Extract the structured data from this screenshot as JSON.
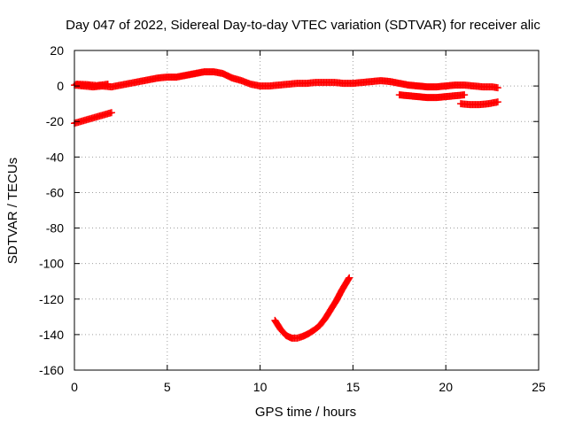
{
  "chart_data": {
    "type": "scatter",
    "title": "Day 047 of 2022, Sidereal Day-to-day VTEC variation (SDTVAR) for receiver alic",
    "xlabel": "GPS time / hours",
    "ylabel": "SDTVAR / TECUs",
    "xlim": [
      0,
      25
    ],
    "ylim": [
      -160,
      20
    ],
    "xticks": [
      0,
      5,
      10,
      15,
      20,
      25
    ],
    "yticks": [
      20,
      0,
      -20,
      -40,
      -60,
      -80,
      -100,
      -120,
      -140,
      -160
    ],
    "grid": true,
    "legend": "none",
    "series_color": "#ff0000",
    "series": [
      {
        "values": [
          [
            0.0,
            0.5
          ],
          [
            0.5,
            0.0
          ],
          [
            1.0,
            -0.5
          ],
          [
            1.5,
            0.0
          ],
          [
            2.0,
            -0.5
          ],
          [
            2.5,
            0.5
          ],
          [
            3.0,
            1.5
          ],
          [
            3.5,
            2.5
          ],
          [
            4.0,
            3.5
          ],
          [
            4.5,
            4.5
          ],
          [
            5.0,
            5.0
          ],
          [
            5.5,
            5.0
          ],
          [
            6.0,
            6.0
          ],
          [
            6.5,
            7.0
          ],
          [
            7.0,
            8.0
          ],
          [
            7.5,
            8.0
          ],
          [
            8.0,
            7.0
          ],
          [
            8.5,
            4.5
          ],
          [
            9.0,
            3.0
          ],
          [
            9.5,
            1.0
          ],
          [
            10.0,
            0.0
          ],
          [
            10.5,
            0.0
          ],
          [
            11.0,
            0.5
          ],
          [
            11.5,
            1.0
          ],
          [
            12.0,
            1.5
          ],
          [
            12.5,
            1.5
          ],
          [
            13.0,
            2.0
          ],
          [
            13.5,
            2.0
          ],
          [
            14.0,
            2.0
          ],
          [
            14.5,
            1.5
          ],
          [
            15.0,
            1.5
          ],
          [
            15.5,
            2.0
          ],
          [
            16.0,
            2.5
          ],
          [
            16.5,
            3.0
          ],
          [
            17.0,
            2.5
          ],
          [
            17.5,
            1.5
          ],
          [
            18.0,
            0.5
          ],
          [
            18.5,
            0.0
          ],
          [
            19.0,
            -0.5
          ],
          [
            19.5,
            -0.5
          ],
          [
            20.0,
            0.0
          ],
          [
            20.5,
            0.5
          ],
          [
            21.0,
            0.5
          ],
          [
            21.5,
            0.0
          ],
          [
            22.0,
            -0.5
          ],
          [
            22.5,
            -0.5
          ],
          [
            22.8,
            -1.0
          ]
        ]
      },
      {
        "values": [
          [
            0.0,
            -21.0
          ],
          [
            0.5,
            -19.5
          ],
          [
            1.0,
            -18.0
          ],
          [
            1.5,
            -16.5
          ],
          [
            2.0,
            -15.0
          ]
        ]
      },
      {
        "values": [
          [
            0.1,
            1.0
          ],
          [
            0.6,
            0.8
          ],
          [
            1.2,
            0.2
          ],
          [
            1.8,
            1.0
          ]
        ]
      },
      {
        "values": [
          [
            17.5,
            -5.0
          ],
          [
            18.0,
            -5.5
          ],
          [
            18.5,
            -6.0
          ],
          [
            19.0,
            -6.5
          ],
          [
            19.5,
            -6.5
          ],
          [
            20.0,
            -6.0
          ],
          [
            20.5,
            -5.5
          ],
          [
            21.0,
            -5.0
          ]
        ]
      },
      {
        "values": [
          [
            20.8,
            -10.0
          ],
          [
            21.3,
            -10.5
          ],
          [
            21.8,
            -10.5
          ],
          [
            22.3,
            -10.0
          ],
          [
            22.8,
            -9.0
          ]
        ]
      },
      {
        "values": [
          [
            10.8,
            -132.0
          ],
          [
            11.1,
            -137.0
          ],
          [
            11.4,
            -140.5
          ],
          [
            11.7,
            -142.0
          ],
          [
            12.0,
            -142.0
          ],
          [
            12.3,
            -141.0
          ],
          [
            12.6,
            -139.5
          ],
          [
            12.9,
            -137.5
          ],
          [
            13.2,
            -135.0
          ],
          [
            13.5,
            -131.0
          ],
          [
            13.8,
            -126.0
          ],
          [
            14.1,
            -121.0
          ],
          [
            14.4,
            -115.0
          ],
          [
            14.8,
            -108.0
          ]
        ]
      }
    ]
  }
}
